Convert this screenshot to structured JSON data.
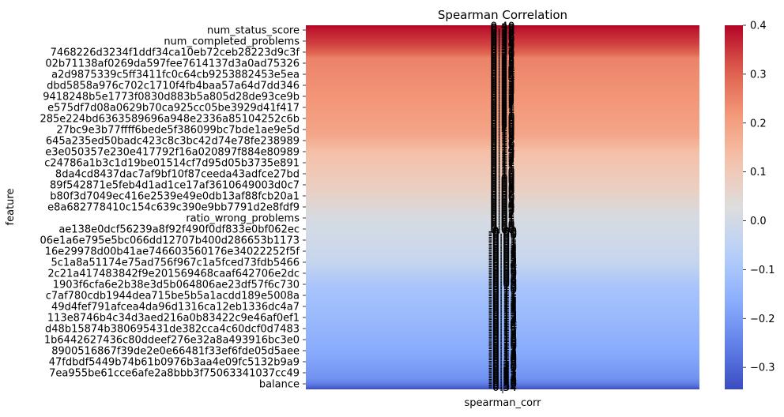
{
  "chart_data": {
    "type": "heatmap",
    "title": "Spearman Correlation",
    "xlabel": "",
    "ylabel": "feature",
    "x_tick_labels": [
      "spearman_corr"
    ],
    "column": "spearman_corr",
    "colormap": "coolwarm",
    "colorbar": {
      "vmin": -0.345,
      "vmax": 0.4,
      "ticks": [
        0.4,
        0.3,
        0.2,
        0.1,
        0.0,
        -0.1,
        -0.2,
        -0.3
      ],
      "tick_labels": [
        "0.4",
        "0.3",
        "0.2",
        "0.1",
        "0.0",
        "−0.1",
        "−0.2",
        "−0.3"
      ]
    },
    "shown_row_labels": [
      "num_status_score",
      "num_completed_problems",
      "7468226d3234f1ddf34ca10eb72ceb28223d9c3f",
      "02b71138af0269da597fee7614137d3a0ad75326",
      "a2d9875339c5ff3411fc0c64cb9253882453e5ea",
      "dbd5858a976c702c1710f4fb4baa57a64d7dd346",
      "9418248b5e1773f0830d883b5a805d28de93ce9b",
      "e575df7d08a0629b70ca925cc05be3929d41f417",
      "285e224bd6363589696a948e2336a85104252c6b",
      "27bc9e3b77ffff6bede5f386099bc7bde1ae9e5d",
      "645a235ed50badc423c8c3bc42d74e78fe238989",
      "e3e050357e230e417792f16a020897f884e80989",
      "c24786a1b3c1d19be01514cf7d95d05b3735e891",
      "8da4cd8437dac7af9bf10f87ceeda43adfce27bd",
      "89f542871e5feb4d1ad1ce17af3610649003d0c7",
      "b80f3d7049ec416e2539e49e0db13af88fcb20a1",
      "e8a682778410c154c639c390e9bb7791d2e8fdf9",
      "ratio_wrong_problems",
      "ae138e0dcf56239a8f92f490f0df833e0bf062ec",
      "06e1a6e795e5bc066dd12707b400d286653b1173",
      "16e29978d00b41ae746603560176e34022252f5f",
      "5c1a8a51174e75ad756f967c1a5fced73fdb5466",
      "2c21a417483842f9e201569468caaf642706e2dc",
      "1903f6cfa6e2b38e3d5b064806ae23df57f6c730",
      "c7af780cdb1944dea715be5b5a1acdd189e5008a",
      "49d4fef791afcea4da96d1316ca12eb1336dc4a7",
      "113e8746b4c34d3aed216a0b83422c9e46af0ef1",
      "d48b15874b380695431de382cca4c60dcf0d7483",
      "1b6442627436c80ddeef276e32a8a493916bc3e0",
      "8900516867f39de2e0e66481f33ef6fde05d5aee",
      "47fdbdf5449b74b61b0976b3aa4e09fc5132b9a9",
      "7ea955be61cce6afe2a8bbb3f75063341037cc49",
      "balance"
    ],
    "value_profile": [
      {
        "position": 0.0,
        "value": 0.4
      },
      {
        "position": 0.012,
        "value": 0.38
      },
      {
        "position": 0.05,
        "value": 0.34
      },
      {
        "position": 0.08,
        "value": 0.29
      },
      {
        "position": 0.09,
        "value": 0.25
      },
      {
        "position": 0.2,
        "value": 0.22
      },
      {
        "position": 0.3,
        "value": 0.19
      },
      {
        "position": 0.35,
        "value": 0.13
      },
      {
        "position": 0.45,
        "value": 0.08
      },
      {
        "position": 0.53,
        "value": 0.01
      },
      {
        "position": 0.6,
        "value": -0.01
      },
      {
        "position": 0.65,
        "value": -0.03
      },
      {
        "position": 0.72,
        "value": -0.1
      },
      {
        "position": 0.8,
        "value": -0.13
      },
      {
        "position": 0.9,
        "value": -0.17
      },
      {
        "position": 0.97,
        "value": -0.22
      },
      {
        "position": 0.985,
        "value": -0.26
      },
      {
        "position": 0.993,
        "value": -0.3
      },
      {
        "position": 1.0,
        "value": -0.345
      }
    ],
    "grid": false
  }
}
